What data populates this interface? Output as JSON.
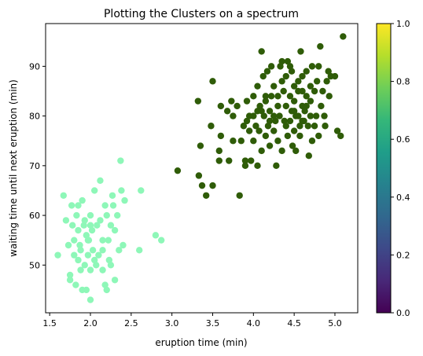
{
  "chart_data": {
    "type": "scatter",
    "title": "Plotting the Clusters on a spectrum",
    "xlabel": "eruption time (min)",
    "ylabel": "waiting time until next eruption (min)",
    "xlim": [
      1.45,
      5.28
    ],
    "ylim": [
      40.4,
      98.6
    ],
    "xticks": [
      1.5,
      2.0,
      2.5,
      3.0,
      3.5,
      4.0,
      4.5,
      5.0
    ],
    "xtick_labels": [
      "1.5",
      "2.0",
      "2.5",
      "3.0",
      "3.5",
      "4.0",
      "4.5",
      "5.0"
    ],
    "yticks": [
      50,
      60,
      70,
      80,
      90
    ],
    "ytick_labels": [
      "50",
      "60",
      "70",
      "80",
      "90"
    ],
    "grid": false,
    "colorbar": {
      "colormap": "viridis",
      "range": [
        0.0,
        1.0
      ],
      "ticks": [
        0.0,
        0.2,
        0.4,
        0.6,
        0.8,
        1.0
      ],
      "tick_labels": [
        "0.0",
        "0.2",
        "0.4",
        "0.6",
        "0.8",
        "1.0"
      ],
      "stops": [
        "#440154",
        "#482878",
        "#3e4989",
        "#31688e",
        "#26828e",
        "#1f9e89",
        "#35b779",
        "#6ece58",
        "#b5de2b",
        "#fde725"
      ]
    },
    "series": [
      {
        "color": "#8ef7b8",
        "points": [
          [
            1.6,
            52
          ],
          [
            1.67,
            64
          ],
          [
            1.7,
            59
          ],
          [
            1.73,
            54
          ],
          [
            1.75,
            48
          ],
          [
            1.75,
            47
          ],
          [
            1.77,
            62
          ],
          [
            1.78,
            58
          ],
          [
            1.8,
            55
          ],
          [
            1.8,
            52
          ],
          [
            1.82,
            46
          ],
          [
            1.83,
            60
          ],
          [
            1.85,
            51
          ],
          [
            1.85,
            57
          ],
          [
            1.87,
            54
          ],
          [
            1.88,
            49
          ],
          [
            1.88,
            53
          ],
          [
            1.9,
            45
          ],
          [
            1.9,
            63
          ],
          [
            1.92,
            58
          ],
          [
            1.93,
            50
          ],
          [
            1.95,
            56
          ],
          [
            1.95,
            45
          ],
          [
            1.97,
            52
          ],
          [
            1.98,
            55
          ],
          [
            2.0,
            60
          ],
          [
            2.0,
            49
          ],
          [
            2.0,
            43
          ],
          [
            2.02,
            57
          ],
          [
            2.03,
            53
          ],
          [
            2.05,
            65
          ],
          [
            2.07,
            50
          ],
          [
            2.08,
            58
          ],
          [
            2.1,
            52
          ],
          [
            2.12,
            59
          ],
          [
            2.12,
            67
          ],
          [
            2.15,
            53
          ],
          [
            2.15,
            49
          ],
          [
            2.18,
            62
          ],
          [
            2.18,
            46
          ],
          [
            2.2,
            60
          ],
          [
            2.2,
            45
          ],
          [
            2.22,
            55
          ],
          [
            2.23,
            51
          ],
          [
            2.25,
            58
          ],
          [
            2.27,
            64
          ],
          [
            2.28,
            62
          ],
          [
            2.3,
            57
          ],
          [
            2.3,
            47
          ],
          [
            2.33,
            60
          ],
          [
            2.35,
            53
          ],
          [
            2.37,
            71
          ],
          [
            2.38,
            65
          ],
          [
            2.4,
            54
          ],
          [
            2.42,
            63
          ],
          [
            2.6,
            53
          ],
          [
            2.62,
            65
          ],
          [
            2.8,
            56
          ],
          [
            2.87,
            55
          ],
          [
            1.93,
            59
          ],
          [
            1.85,
            62
          ],
          [
            2.05,
            51
          ],
          [
            1.97,
            55
          ],
          [
            2.25,
            50
          ],
          [
            2.15,
            55
          ],
          [
            2.0,
            58
          ]
        ]
      },
      {
        "color": "#2f5c08",
        "points": [
          [
            3.07,
            69
          ],
          [
            3.32,
            83
          ],
          [
            3.33,
            68
          ],
          [
            3.35,
            74
          ],
          [
            3.37,
            66
          ],
          [
            3.42,
            64
          ],
          [
            3.48,
            78
          ],
          [
            3.5,
            66
          ],
          [
            3.5,
            87
          ],
          [
            3.58,
            73
          ],
          [
            3.58,
            71
          ],
          [
            3.6,
            82
          ],
          [
            3.6,
            76
          ],
          [
            3.68,
            81
          ],
          [
            3.7,
            71
          ],
          [
            3.73,
            83
          ],
          [
            3.75,
            75
          ],
          [
            3.75,
            80
          ],
          [
            3.8,
            82
          ],
          [
            3.83,
            64
          ],
          [
            3.85,
            75
          ],
          [
            3.88,
            78
          ],
          [
            3.9,
            70
          ],
          [
            3.9,
            71
          ],
          [
            3.92,
            83
          ],
          [
            3.92,
            79
          ],
          [
            3.95,
            80
          ],
          [
            3.97,
            71
          ],
          [
            4.0,
            84
          ],
          [
            4.0,
            75
          ],
          [
            4.0,
            80
          ],
          [
            4.03,
            78
          ],
          [
            4.05,
            86
          ],
          [
            4.05,
            70
          ],
          [
            4.07,
            77
          ],
          [
            4.08,
            82
          ],
          [
            4.1,
            93
          ],
          [
            4.1,
            73
          ],
          [
            4.12,
            88
          ],
          [
            4.13,
            80
          ],
          [
            4.15,
            76
          ],
          [
            4.15,
            83
          ],
          [
            4.17,
            89
          ],
          [
            4.18,
            78
          ],
          [
            4.2,
            81
          ],
          [
            4.2,
            74
          ],
          [
            4.22,
            90
          ],
          [
            4.22,
            84
          ],
          [
            4.25,
            86
          ],
          [
            4.25,
            77
          ],
          [
            4.27,
            79
          ],
          [
            4.28,
            70
          ],
          [
            4.3,
            82
          ],
          [
            4.3,
            75
          ],
          [
            4.32,
            80
          ],
          [
            4.33,
            90
          ],
          [
            4.35,
            91
          ],
          [
            4.35,
            73
          ],
          [
            4.37,
            85
          ],
          [
            4.38,
            79
          ],
          [
            4.4,
            88
          ],
          [
            4.4,
            82
          ],
          [
            4.42,
            76
          ],
          [
            4.42,
            91
          ],
          [
            4.45,
            84
          ],
          [
            4.45,
            79
          ],
          [
            4.47,
            81
          ],
          [
            4.47,
            89
          ],
          [
            4.48,
            74
          ],
          [
            4.5,
            83
          ],
          [
            4.5,
            77
          ],
          [
            4.5,
            86
          ],
          [
            4.52,
            80
          ],
          [
            4.52,
            73
          ],
          [
            4.55,
            85
          ],
          [
            4.55,
            80
          ],
          [
            4.57,
            78
          ],
          [
            4.57,
            76
          ],
          [
            4.58,
            93
          ],
          [
            4.6,
            82
          ],
          [
            4.6,
            88
          ],
          [
            4.6,
            85
          ],
          [
            4.62,
            79
          ],
          [
            4.63,
            81
          ],
          [
            4.65,
            84
          ],
          [
            4.65,
            89
          ],
          [
            4.67,
            78
          ],
          [
            4.68,
            72
          ],
          [
            4.7,
            83
          ],
          [
            4.7,
            80
          ],
          [
            4.72,
            90
          ],
          [
            4.72,
            75
          ],
          [
            4.75,
            85
          ],
          [
            4.77,
            80
          ],
          [
            4.78,
            87
          ],
          [
            4.8,
            90
          ],
          [
            4.8,
            76
          ],
          [
            4.82,
            94
          ],
          [
            4.83,
            82
          ],
          [
            4.85,
            85
          ],
          [
            4.87,
            80
          ],
          [
            4.88,
            78
          ],
          [
            4.9,
            87
          ],
          [
            4.92,
            89
          ],
          [
            4.93,
            84
          ],
          [
            4.95,
            88
          ],
          [
            5.0,
            88
          ],
          [
            5.03,
            77
          ],
          [
            5.07,
            76
          ],
          [
            5.1,
            96
          ],
          [
            4.35,
            87
          ],
          [
            4.45,
            90
          ],
          [
            4.25,
            80
          ],
          [
            4.15,
            84
          ],
          [
            4.05,
            81
          ],
          [
            3.95,
            77
          ],
          [
            4.4,
            78
          ],
          [
            4.55,
            87
          ],
          [
            4.65,
            82
          ],
          [
            4.75,
            78
          ],
          [
            4.3,
            84
          ],
          [
            4.5,
            81
          ],
          [
            4.2,
            79
          ],
          [
            4.1,
            81
          ],
          [
            4.6,
            79
          ],
          [
            4.7,
            86
          ]
        ]
      }
    ]
  }
}
